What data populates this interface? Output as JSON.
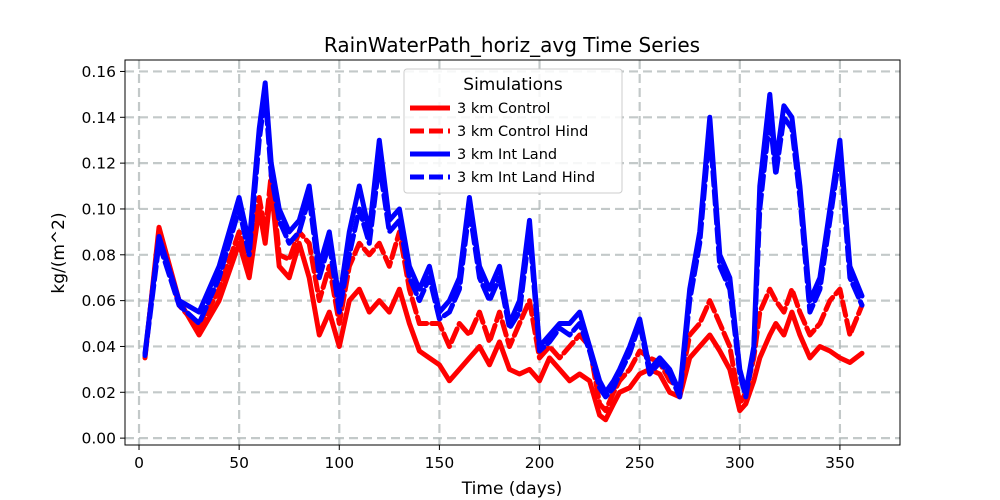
{
  "chart_data": {
    "type": "line",
    "title": "RainWaterPath_horiz_avg Time Series",
    "xlabel": "Time (days)",
    "ylabel": "kg/(m^2)",
    "xlim": [
      -7,
      380
    ],
    "ylim": [
      -0.003,
      0.165
    ],
    "xticks": [
      0,
      50,
      100,
      150,
      200,
      250,
      300,
      350
    ],
    "yticks": [
      0.0,
      0.02,
      0.04,
      0.06,
      0.08,
      0.1,
      0.12,
      0.14,
      0.16
    ],
    "xtick_labels": [
      "0",
      "50",
      "100",
      "150",
      "200",
      "250",
      "300",
      "350"
    ],
    "ytick_labels": [
      "0.00",
      "0.02",
      "0.04",
      "0.06",
      "0.08",
      "0.10",
      "0.12",
      "0.14",
      "0.16"
    ],
    "grid": true,
    "legend": {
      "title": "Simulations",
      "placement": "top-center"
    },
    "x": [
      3,
      10,
      20,
      30,
      40,
      50,
      55,
      60,
      63,
      66,
      70,
      75,
      80,
      85,
      90,
      95,
      100,
      105,
      110,
      115,
      120,
      125,
      130,
      135,
      140,
      145,
      150,
      155,
      160,
      165,
      170,
      175,
      180,
      185,
      190,
      195,
      200,
      205,
      210,
      215,
      220,
      225,
      230,
      233,
      237,
      240,
      245,
      250,
      255,
      260,
      265,
      270,
      275,
      280,
      285,
      290,
      295,
      300,
      303,
      307,
      310,
      315,
      318,
      322,
      326,
      330,
      335,
      340,
      345,
      350,
      355,
      361
    ],
    "series": [
      {
        "name": "3 km Control",
        "color": "#ff0000",
        "style": "solid",
        "values": [
          0.035,
          0.092,
          0.06,
          0.045,
          0.06,
          0.085,
          0.07,
          0.1,
          0.085,
          0.11,
          0.075,
          0.07,
          0.085,
          0.07,
          0.045,
          0.055,
          0.04,
          0.06,
          0.065,
          0.055,
          0.06,
          0.055,
          0.065,
          0.05,
          0.038,
          0.035,
          0.032,
          0.025,
          0.03,
          0.035,
          0.04,
          0.032,
          0.042,
          0.03,
          0.028,
          0.03,
          0.025,
          0.035,
          0.03,
          0.025,
          0.028,
          0.025,
          0.01,
          0.008,
          0.015,
          0.02,
          0.022,
          0.028,
          0.03,
          0.028,
          0.02,
          0.018,
          0.035,
          0.04,
          0.045,
          0.038,
          0.03,
          0.012,
          0.015,
          0.025,
          0.035,
          0.045,
          0.05,
          0.045,
          0.055,
          0.045,
          0.035,
          0.04,
          0.038,
          0.035,
          0.033,
          0.037
        ]
      },
      {
        "name": "3 km Control Hind",
        "color": "#ff0000",
        "style": "dashed",
        "values": [
          0.036,
          0.09,
          0.058,
          0.048,
          0.065,
          0.09,
          0.075,
          0.105,
          0.09,
          0.115,
          0.08,
          0.078,
          0.09,
          0.085,
          0.06,
          0.075,
          0.05,
          0.075,
          0.085,
          0.08,
          0.085,
          0.075,
          0.09,
          0.065,
          0.05,
          0.05,
          0.05,
          0.04,
          0.05,
          0.045,
          0.055,
          0.042,
          0.055,
          0.04,
          0.05,
          0.06,
          0.035,
          0.04,
          0.035,
          0.04,
          0.045,
          0.04,
          0.015,
          0.012,
          0.02,
          0.025,
          0.03,
          0.038,
          0.035,
          0.033,
          0.025,
          0.022,
          0.045,
          0.05,
          0.06,
          0.05,
          0.04,
          0.015,
          0.02,
          0.035,
          0.055,
          0.065,
          0.06,
          0.055,
          0.065,
          0.055,
          0.045,
          0.05,
          0.06,
          0.065,
          0.045,
          0.058
        ]
      },
      {
        "name": "3 km Int Land",
        "color": "#0000ff",
        "style": "solid",
        "values": [
          0.037,
          0.088,
          0.06,
          0.055,
          0.075,
          0.105,
          0.085,
          0.135,
          0.155,
          0.12,
          0.1,
          0.09,
          0.095,
          0.11,
          0.075,
          0.09,
          0.06,
          0.09,
          0.11,
          0.09,
          0.13,
          0.095,
          0.1,
          0.075,
          0.065,
          0.075,
          0.055,
          0.06,
          0.07,
          0.105,
          0.075,
          0.065,
          0.075,
          0.05,
          0.06,
          0.095,
          0.04,
          0.045,
          0.05,
          0.05,
          0.055,
          0.04,
          0.025,
          0.02,
          0.025,
          0.03,
          0.04,
          0.052,
          0.03,
          0.035,
          0.03,
          0.02,
          0.065,
          0.09,
          0.14,
          0.08,
          0.07,
          0.03,
          0.02,
          0.04,
          0.11,
          0.15,
          0.12,
          0.145,
          0.14,
          0.11,
          0.06,
          0.07,
          0.1,
          0.13,
          0.075,
          0.062
        ]
      },
      {
        "name": "3 km Int Land Hind",
        "color": "#0000ff",
        "style": "dashed",
        "values": [
          0.036,
          0.085,
          0.058,
          0.05,
          0.07,
          0.1,
          0.08,
          0.13,
          0.15,
          0.115,
          0.095,
          0.085,
          0.09,
          0.105,
          0.07,
          0.085,
          0.055,
          0.08,
          0.1,
          0.085,
          0.12,
          0.09,
          0.095,
          0.07,
          0.06,
          0.07,
          0.052,
          0.055,
          0.065,
          0.1,
          0.07,
          0.06,
          0.07,
          0.048,
          0.055,
          0.09,
          0.038,
          0.042,
          0.048,
          0.045,
          0.05,
          0.038,
          0.022,
          0.018,
          0.022,
          0.028,
          0.037,
          0.05,
          0.028,
          0.033,
          0.028,
          0.018,
          0.06,
          0.085,
          0.135,
          0.075,
          0.065,
          0.028,
          0.018,
          0.038,
          0.1,
          0.14,
          0.115,
          0.14,
          0.135,
          0.105,
          0.055,
          0.065,
          0.095,
          0.125,
          0.07,
          0.058
        ]
      }
    ]
  }
}
